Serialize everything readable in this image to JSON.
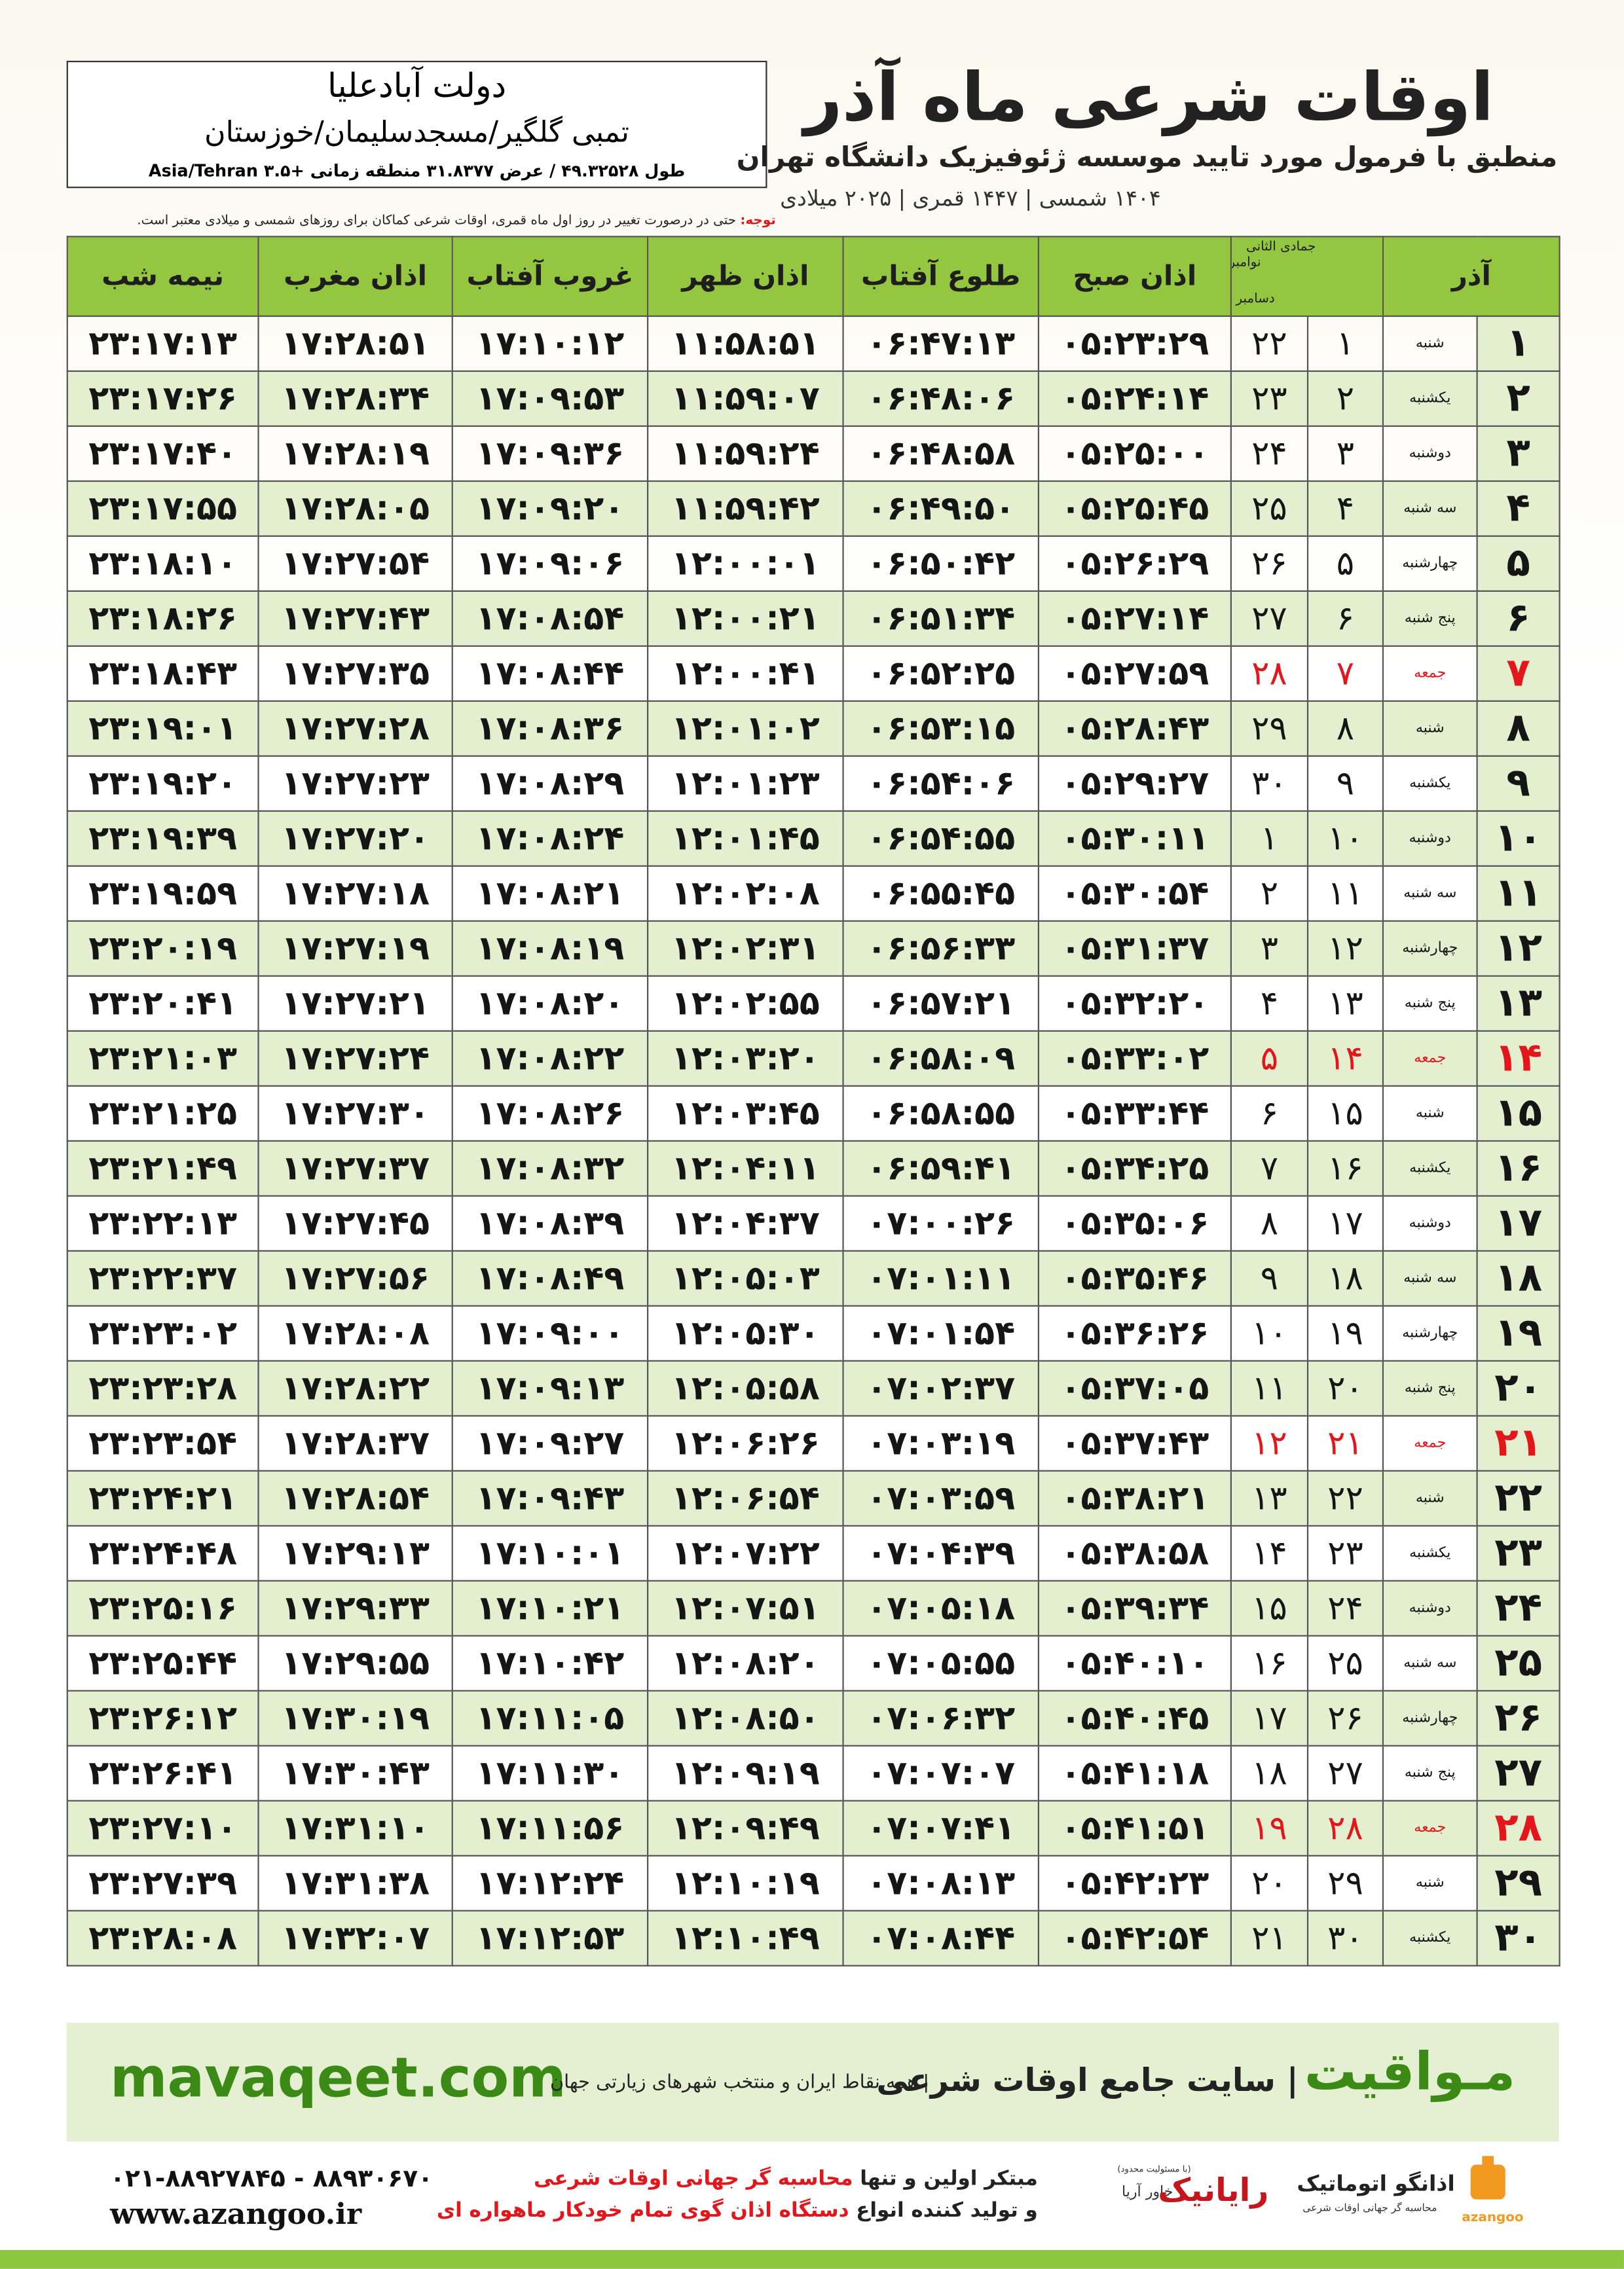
{
  "header": {
    "location_name": "دولت آبادعلیا",
    "location_detail": "تمبی گلگیر/مسجدسلیمان/خوزستان",
    "coordinates": "طول ۴۹.۳۲۵۲۸ / عرض ۳۱.۸۳۷۷ منطقه زمانی +۳.۵ Asia/Tehran"
  },
  "title": {
    "main": "اوقات شرعی ماه آذر",
    "subtitle": "منطبق با فرمول مورد تایید موسسه ژئوفیزیک دانشگاه تهران",
    "dates": "۱۴۰۴ شمسی | ۱۴۴۷ قمری | ۲۰۲۵ میلادی"
  },
  "note": {
    "label": "توجه:",
    "text": "حتی در درصورت تغییر در روز اول ماه قمری، اوقات شرعی کماکان برای روزهای شمسی و میلادی معتبر است."
  },
  "table": {
    "columns": [
      "آذر",
      "جمادی الثانی",
      "نوامبر",
      "دسامبر",
      "اذان صبح",
      "طلوع آفتاب",
      "اذان ظهر",
      "غروب آفتاب",
      "اذان مغرب",
      "نیمه شب"
    ],
    "header_color": "#95c640",
    "stripe_color": "#e4efcf",
    "holiday_color": "#e3161b",
    "rows": [
      {
        "cells": [
          "۱",
          "شنبه",
          "۱",
          "۲۲",
          "۰۵:۲۳:۲۹",
          "۰۶:۴۷:۱۳",
          "۱۱:۵۸:۵۱",
          "۱۷:۱۰:۱۲",
          "۱۷:۲۸:۵۱",
          "۲۳:۱۷:۱۳"
        ],
        "holiday": false
      },
      {
        "cells": [
          "۲",
          "یکشنبه",
          "۲",
          "۲۳",
          "۰۵:۲۴:۱۴",
          "۰۶:۴۸:۰۶",
          "۱۱:۵۹:۰۷",
          "۱۷:۰۹:۵۳",
          "۱۷:۲۸:۳۴",
          "۲۳:۱۷:۲۶"
        ],
        "holiday": false
      },
      {
        "cells": [
          "۳",
          "دوشنبه",
          "۳",
          "۲۴",
          "۰۵:۲۵:۰۰",
          "۰۶:۴۸:۵۸",
          "۱۱:۵۹:۲۴",
          "۱۷:۰۹:۳۶",
          "۱۷:۲۸:۱۹",
          "۲۳:۱۷:۴۰"
        ],
        "holiday": false
      },
      {
        "cells": [
          "۴",
          "سه شنبه",
          "۴",
          "۲۵",
          "۰۵:۲۵:۴۵",
          "۰۶:۴۹:۵۰",
          "۱۱:۵۹:۴۲",
          "۱۷:۰۹:۲۰",
          "۱۷:۲۸:۰۵",
          "۲۳:۱۷:۵۵"
        ],
        "holiday": false
      },
      {
        "cells": [
          "۵",
          "چهارشنبه",
          "۵",
          "۲۶",
          "۰۵:۲۶:۲۹",
          "۰۶:۵۰:۴۲",
          "۱۲:۰۰:۰۱",
          "۱۷:۰۹:۰۶",
          "۱۷:۲۷:۵۴",
          "۲۳:۱۸:۱۰"
        ],
        "holiday": false
      },
      {
        "cells": [
          "۶",
          "پنج شنبه",
          "۶",
          "۲۷",
          "۰۵:۲۷:۱۴",
          "۰۶:۵۱:۳۴",
          "۱۲:۰۰:۲۱",
          "۱۷:۰۸:۵۴",
          "۱۷:۲۷:۴۳",
          "۲۳:۱۸:۲۶"
        ],
        "holiday": false
      },
      {
        "cells": [
          "۷",
          "جمعه",
          "۷",
          "۲۸",
          "۰۵:۲۷:۵۹",
          "۰۶:۵۲:۲۵",
          "۱۲:۰۰:۴۱",
          "۱۷:۰۸:۴۴",
          "۱۷:۲۷:۳۵",
          "۲۳:۱۸:۴۳"
        ],
        "holiday": true
      },
      {
        "cells": [
          "۸",
          "شنبه",
          "۸",
          "۲۹",
          "۰۵:۲۸:۴۳",
          "۰۶:۵۳:۱۵",
          "۱۲:۰۱:۰۲",
          "۱۷:۰۸:۳۶",
          "۱۷:۲۷:۲۸",
          "۲۳:۱۹:۰۱"
        ],
        "holiday": false
      },
      {
        "cells": [
          "۹",
          "یکشنبه",
          "۹",
          "۳۰",
          "۰۵:۲۹:۲۷",
          "۰۶:۵۴:۰۶",
          "۱۲:۰۱:۲۳",
          "۱۷:۰۸:۲۹",
          "۱۷:۲۷:۲۳",
          "۲۳:۱۹:۲۰"
        ],
        "holiday": false
      },
      {
        "cells": [
          "۱۰",
          "دوشنبه",
          "۱۰",
          "۱",
          "۰۵:۳۰:۱۱",
          "۰۶:۵۴:۵۵",
          "۱۲:۰۱:۴۵",
          "۱۷:۰۸:۲۴",
          "۱۷:۲۷:۲۰",
          "۲۳:۱۹:۳۹"
        ],
        "holiday": false
      },
      {
        "cells": [
          "۱۱",
          "سه شنبه",
          "۱۱",
          "۲",
          "۰۵:۳۰:۵۴",
          "۰۶:۵۵:۴۵",
          "۱۲:۰۲:۰۸",
          "۱۷:۰۸:۲۱",
          "۱۷:۲۷:۱۸",
          "۲۳:۱۹:۵۹"
        ],
        "holiday": false
      },
      {
        "cells": [
          "۱۲",
          "چهارشنبه",
          "۱۲",
          "۳",
          "۰۵:۳۱:۳۷",
          "۰۶:۵۶:۳۳",
          "۱۲:۰۲:۳۱",
          "۱۷:۰۸:۱۹",
          "۱۷:۲۷:۱۹",
          "۲۳:۲۰:۱۹"
        ],
        "holiday": false
      },
      {
        "cells": [
          "۱۳",
          "پنج شنبه",
          "۱۳",
          "۴",
          "۰۵:۳۲:۲۰",
          "۰۶:۵۷:۲۱",
          "۱۲:۰۲:۵۵",
          "۱۷:۰۸:۲۰",
          "۱۷:۲۷:۲۱",
          "۲۳:۲۰:۴۱"
        ],
        "holiday": false
      },
      {
        "cells": [
          "۱۴",
          "جمعه",
          "۱۴",
          "۵",
          "۰۵:۳۳:۰۲",
          "۰۶:۵۸:۰۹",
          "۱۲:۰۳:۲۰",
          "۱۷:۰۸:۲۲",
          "۱۷:۲۷:۲۴",
          "۲۳:۲۱:۰۳"
        ],
        "holiday": true
      },
      {
        "cells": [
          "۱۵",
          "شنبه",
          "۱۵",
          "۶",
          "۰۵:۳۳:۴۴",
          "۰۶:۵۸:۵۵",
          "۱۲:۰۳:۴۵",
          "۱۷:۰۸:۲۶",
          "۱۷:۲۷:۳۰",
          "۲۳:۲۱:۲۵"
        ],
        "holiday": false
      },
      {
        "cells": [
          "۱۶",
          "یکشنبه",
          "۱۶",
          "۷",
          "۰۵:۳۴:۲۵",
          "۰۶:۵۹:۴۱",
          "۱۲:۰۴:۱۱",
          "۱۷:۰۸:۳۲",
          "۱۷:۲۷:۳۷",
          "۲۳:۲۱:۴۹"
        ],
        "holiday": false
      },
      {
        "cells": [
          "۱۷",
          "دوشنبه",
          "۱۷",
          "۸",
          "۰۵:۳۵:۰۶",
          "۰۷:۰۰:۲۶",
          "۱۲:۰۴:۳۷",
          "۱۷:۰۸:۳۹",
          "۱۷:۲۷:۴۵",
          "۲۳:۲۲:۱۳"
        ],
        "holiday": false
      },
      {
        "cells": [
          "۱۸",
          "سه شنبه",
          "۱۸",
          "۹",
          "۰۵:۳۵:۴۶",
          "۰۷:۰۱:۱۱",
          "۱۲:۰۵:۰۳",
          "۱۷:۰۸:۴۹",
          "۱۷:۲۷:۵۶",
          "۲۳:۲۲:۳۷"
        ],
        "holiday": false
      },
      {
        "cells": [
          "۱۹",
          "چهارشنبه",
          "۱۹",
          "۱۰",
          "۰۵:۳۶:۲۶",
          "۰۷:۰۱:۵۴",
          "۱۲:۰۵:۳۰",
          "۱۷:۰۹:۰۰",
          "۱۷:۲۸:۰۸",
          "۲۳:۲۳:۰۲"
        ],
        "holiday": false
      },
      {
        "cells": [
          "۲۰",
          "پنج شنبه",
          "۲۰",
          "۱۱",
          "۰۵:۳۷:۰۵",
          "۰۷:۰۲:۳۷",
          "۱۲:۰۵:۵۸",
          "۱۷:۰۹:۱۳",
          "۱۷:۲۸:۲۲",
          "۲۳:۲۳:۲۸"
        ],
        "holiday": false
      },
      {
        "cells": [
          "۲۱",
          "جمعه",
          "۲۱",
          "۱۲",
          "۰۵:۳۷:۴۳",
          "۰۷:۰۳:۱۹",
          "۱۲:۰۶:۲۶",
          "۱۷:۰۹:۲۷",
          "۱۷:۲۸:۳۷",
          "۲۳:۲۳:۵۴"
        ],
        "holiday": true
      },
      {
        "cells": [
          "۲۲",
          "شنبه",
          "۲۲",
          "۱۳",
          "۰۵:۳۸:۲۱",
          "۰۷:۰۳:۵۹",
          "۱۲:۰۶:۵۴",
          "۱۷:۰۹:۴۳",
          "۱۷:۲۸:۵۴",
          "۲۳:۲۴:۲۱"
        ],
        "holiday": false
      },
      {
        "cells": [
          "۲۳",
          "یکشنبه",
          "۲۳",
          "۱۴",
          "۰۵:۳۸:۵۸",
          "۰۷:۰۴:۳۹",
          "۱۲:۰۷:۲۲",
          "۱۷:۱۰:۰۱",
          "۱۷:۲۹:۱۳",
          "۲۳:۲۴:۴۸"
        ],
        "holiday": false
      },
      {
        "cells": [
          "۲۴",
          "دوشنبه",
          "۲۴",
          "۱۵",
          "۰۵:۳۹:۳۴",
          "۰۷:۰۵:۱۸",
          "۱۲:۰۷:۵۱",
          "۱۷:۱۰:۲۱",
          "۱۷:۲۹:۳۳",
          "۲۳:۲۵:۱۶"
        ],
        "holiday": false
      },
      {
        "cells": [
          "۲۵",
          "سه شنبه",
          "۲۵",
          "۱۶",
          "۰۵:۴۰:۱۰",
          "۰۷:۰۵:۵۵",
          "۱۲:۰۸:۲۰",
          "۱۷:۱۰:۴۲",
          "۱۷:۲۹:۵۵",
          "۲۳:۲۵:۴۴"
        ],
        "holiday": false
      },
      {
        "cells": [
          "۲۶",
          "چهارشنبه",
          "۲۶",
          "۱۷",
          "۰۵:۴۰:۴۵",
          "۰۷:۰۶:۳۲",
          "۱۲:۰۸:۵۰",
          "۱۷:۱۱:۰۵",
          "۱۷:۳۰:۱۹",
          "۲۳:۲۶:۱۲"
        ],
        "holiday": false
      },
      {
        "cells": [
          "۲۷",
          "پنج شنبه",
          "۲۷",
          "۱۸",
          "۰۵:۴۱:۱۸",
          "۰۷:۰۷:۰۷",
          "۱۲:۰۹:۱۹",
          "۱۷:۱۱:۳۰",
          "۱۷:۳۰:۴۳",
          "۲۳:۲۶:۴۱"
        ],
        "holiday": false
      },
      {
        "cells": [
          "۲۸",
          "جمعه",
          "۲۸",
          "۱۹",
          "۰۵:۴۱:۵۱",
          "۰۷:۰۷:۴۱",
          "۱۲:۰۹:۴۹",
          "۱۷:۱۱:۵۶",
          "۱۷:۳۱:۱۰",
          "۲۳:۲۷:۱۰"
        ],
        "holiday": true
      },
      {
        "cells": [
          "۲۹",
          "شنبه",
          "۲۹",
          "۲۰",
          "۰۵:۴۲:۲۳",
          "۰۷:۰۸:۱۳",
          "۱۲:۱۰:۱۹",
          "۱۷:۱۲:۲۴",
          "۱۷:۳۱:۳۸",
          "۲۳:۲۷:۳۹"
        ],
        "holiday": false
      },
      {
        "cells": [
          "۳۰",
          "یکشنبه",
          "۳۰",
          "۲۱",
          "۰۵:۴۲:۵۴",
          "۰۷:۰۸:۴۴",
          "۱۲:۱۰:۴۹",
          "۱۷:۱۲:۵۳",
          "۱۷:۳۲:۰۷",
          "۲۳:۲۸:۰۸"
        ],
        "holiday": false
      }
    ]
  },
  "banner": {
    "brand": "مـواقیت",
    "tagline": "| سایت جامع اوقات شرعی",
    "coverage": "| همه نقاط ایران و منتخب شهرهای زیارتی جهان",
    "website": "mavaqeet.com"
  },
  "footer": {
    "phones": "۰۲۱-۸۸۹۲۷۸۴۵ - ۸۸۹۳۰۶۷۰",
    "website": "www.azangoo.ir",
    "line1_start": "مبتکر اولین و تنها",
    "line1_highlight": "محاسبه گر جهانی اوقات شرعی",
    "line2_start": "و تولید کننده انواع",
    "line2_highlight": "دستگاه اذان گوی تمام خودکار ماهواره ای",
    "partner_note": "(با مسئولیت محدود)",
    "partner_sub": "خاور آریا",
    "partner_name": "رایانیک",
    "logo_name": "اذانگو اتوماتیک",
    "logo_sub": "محاسبه گر جهانی اوقات شرعی",
    "logo_latin": "azangoo"
  }
}
